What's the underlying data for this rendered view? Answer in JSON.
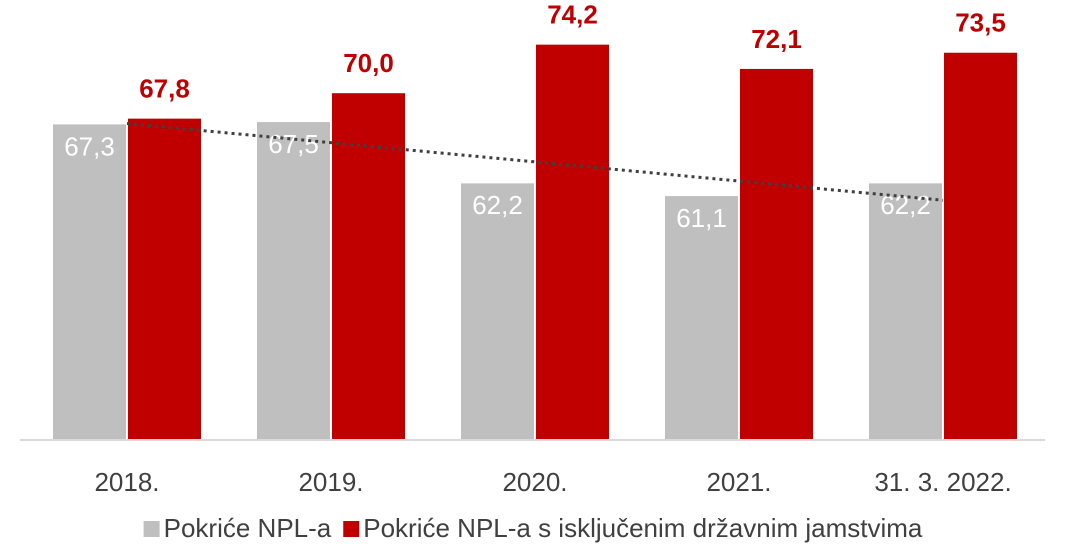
{
  "chart_data": {
    "type": "bar",
    "categories": [
      "2018.",
      "2019.",
      "2020.",
      "2021.",
      "31. 3. 2022."
    ],
    "series": [
      {
        "name": "Pokriće NPL-a",
        "color": "#bfbfbf",
        "values": [
          67.3,
          67.5,
          62.2,
          61.1,
          62.2
        ],
        "value_labels": [
          "67,3",
          "67,5",
          "62,2",
          "61,1",
          "62,2"
        ],
        "trendline": "linear"
      },
      {
        "name": "Pokriće NPL-a s isključenim državnim jamstvima",
        "color": "#c00000",
        "values": [
          67.8,
          70.0,
          74.2,
          72.1,
          73.5
        ],
        "value_labels": [
          "67,8",
          "70,0",
          "74,2",
          "72,1",
          "73,5"
        ]
      }
    ],
    "ylim": [
      40,
      80
    ],
    "legend": "bottom"
  }
}
